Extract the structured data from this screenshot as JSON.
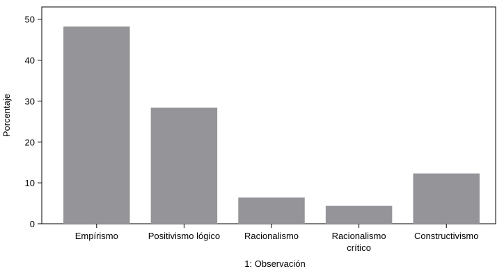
{
  "chart_data": {
    "type": "bar",
    "categories": [
      [
        "Empírismo"
      ],
      [
        "Positivismo lógico"
      ],
      [
        "Racionalismo"
      ],
      [
        "Racionalismo",
        "crítico"
      ],
      [
        "Constructivismo"
      ]
    ],
    "values": [
      48.2,
      28.4,
      6.4,
      4.4,
      12.3
    ],
    "ylabel": "Porcentaje",
    "xlabel": "1: Observación",
    "ylim": [
      0,
      53
    ],
    "yticks": [
      0,
      10,
      20,
      30,
      40,
      50
    ],
    "grid": false,
    "colors": {
      "bar": "#959599",
      "axis": "#000000"
    }
  }
}
